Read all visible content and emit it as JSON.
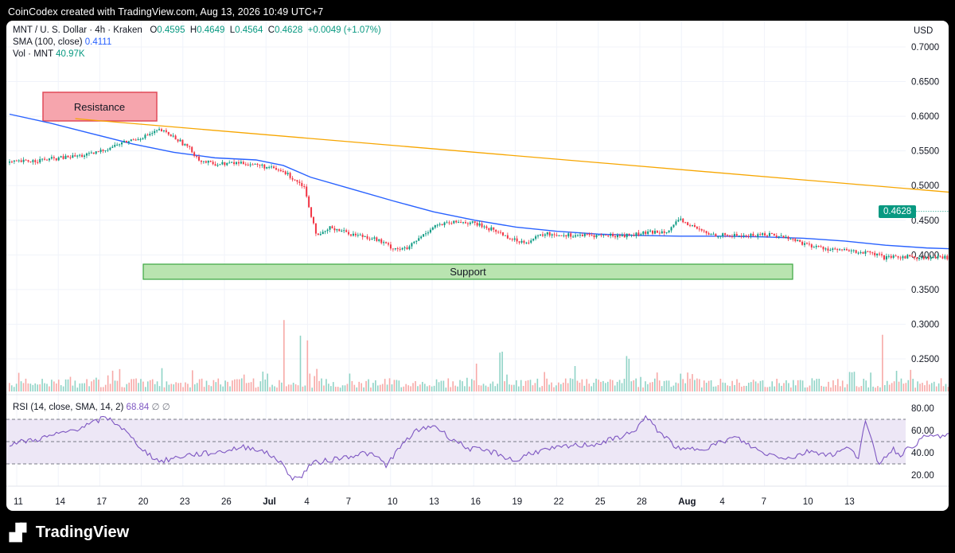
{
  "header": {
    "text": "CoinCodex created with TradingView.com, Aug 13, 2026 10:49 UTC+7"
  },
  "legend": {
    "symbol": "MNT / U. S. Dollar · 4h · Kraken",
    "open_label": "O",
    "open": "0.4595",
    "high_label": "H",
    "high": "0.4649",
    "low_label": "L",
    "low": "0.4564",
    "close_label": "C",
    "close": "0.4628",
    "change": "+0.0049 (+1.07%)",
    "sma_label": "SMA (100, close)",
    "sma_value": "0.4111",
    "vol_label": "Vol · MNT",
    "vol_value": "40.97K"
  },
  "rsi_legend": {
    "label": "RSI (14, close, SMA, 14, 2)",
    "value": "68.84",
    "na1": "∅",
    "na2": "∅"
  },
  "currency": "USD",
  "last_price": "0.4628",
  "annotations": {
    "resistance": "Resistance",
    "support": "Support"
  },
  "footer": {
    "brand": "TradingView"
  },
  "colors": {
    "up": "#089981",
    "down": "#f23645",
    "sma": "#2962ff",
    "trend": "#f7a600",
    "rsi": "#7e57c2",
    "resistance_fill": "#f6a5ad",
    "support_fill": "#b9e4b0"
  },
  "chart_data": {
    "type": "candlestick",
    "title": "MNT / U. S. Dollar · 4h · Kraken",
    "y_axis": {
      "ticks": [
        "0.7000",
        "0.6500",
        "0.6000",
        "0.5500",
        "0.5000",
        "0.4500",
        "0.4000",
        "0.3500",
        "0.3000",
        "0.2500"
      ],
      "min": 0.21,
      "max": 0.72,
      "unit": "USD"
    },
    "x_axis": {
      "ticks": [
        "11",
        "14",
        "17",
        "20",
        "23",
        "26",
        "Jul",
        "4",
        "7",
        "10",
        "13",
        "16",
        "19",
        "22",
        "25",
        "28",
        "Aug",
        "4",
        "7",
        "10",
        "13"
      ]
    },
    "price_path": [
      [
        0,
        0.533
      ],
      [
        3,
        0.538
      ],
      [
        6,
        0.545
      ],
      [
        8,
        0.56
      ],
      [
        10,
        0.572
      ],
      [
        11,
        0.58
      ],
      [
        12,
        0.57
      ],
      [
        13,
        0.556
      ],
      [
        14,
        0.535
      ],
      [
        15,
        0.531
      ],
      [
        17,
        0.533
      ],
      [
        18.5,
        0.528
      ],
      [
        20,
        0.52
      ],
      [
        21.5,
        0.5
      ],
      [
        22,
        0.46
      ],
      [
        22.5,
        0.425
      ],
      [
        23.5,
        0.44
      ],
      [
        25,
        0.43
      ],
      [
        26.5,
        0.425
      ],
      [
        28,
        0.41
      ],
      [
        29,
        0.408
      ],
      [
        30,
        0.425
      ],
      [
        31,
        0.442
      ],
      [
        33,
        0.448
      ],
      [
        34,
        0.445
      ],
      [
        35.5,
        0.435
      ],
      [
        37,
        0.42
      ],
      [
        38,
        0.42
      ],
      [
        39,
        0.43
      ],
      [
        42,
        0.428
      ],
      [
        45,
        0.428
      ],
      [
        48,
        0.435
      ],
      [
        49,
        0.45
      ],
      [
        50,
        0.44
      ],
      [
        51,
        0.43
      ],
      [
        52.5,
        0.428
      ],
      [
        54,
        0.428
      ],
      [
        55.5,
        0.43
      ],
      [
        57,
        0.424
      ],
      [
        58.5,
        0.413
      ],
      [
        60,
        0.408
      ],
      [
        61.5,
        0.405
      ],
      [
        63,
        0.402
      ],
      [
        64,
        0.395
      ],
      [
        65.5,
        0.398
      ],
      [
        67,
        0.395
      ],
      [
        69,
        0.397
      ],
      [
        71,
        0.4
      ],
      [
        72.5,
        0.41
      ],
      [
        74,
        0.418
      ],
      [
        75.5,
        0.428
      ],
      [
        77,
        0.435
      ],
      [
        78,
        0.437
      ],
      [
        78.5,
        0.442
      ],
      [
        79.5,
        0.445
      ],
      [
        80.5,
        0.435
      ],
      [
        81,
        0.432
      ],
      [
        81.4,
        0.447
      ],
      [
        82,
        0.4628
      ]
    ],
    "sma_100": [
      [
        0,
        0.603
      ],
      [
        3,
        0.59
      ],
      [
        6,
        0.575
      ],
      [
        9,
        0.56
      ],
      [
        12,
        0.548
      ],
      [
        15,
        0.54
      ],
      [
        18,
        0.537
      ],
      [
        20,
        0.529
      ],
      [
        22,
        0.512
      ],
      [
        25,
        0.495
      ],
      [
        28,
        0.478
      ],
      [
        31,
        0.462
      ],
      [
        34,
        0.45
      ],
      [
        37,
        0.44
      ],
      [
        40,
        0.434
      ],
      [
        43,
        0.43
      ],
      [
        46,
        0.428
      ],
      [
        49,
        0.427
      ],
      [
        52,
        0.427
      ],
      [
        55,
        0.426
      ],
      [
        58,
        0.424
      ],
      [
        61,
        0.42
      ],
      [
        64,
        0.414
      ],
      [
        67,
        0.41
      ],
      [
        70,
        0.408
      ],
      [
        73,
        0.405
      ],
      [
        76,
        0.403
      ],
      [
        79,
        0.405
      ],
      [
        82,
        0.4111
      ]
    ],
    "trendline": [
      [
        4.8,
        0.5965
      ],
      [
        83.7,
        0.4655
      ]
    ],
    "volume_peaks": [
      [
        20.1,
        0.8
      ],
      [
        21.3,
        0.62
      ],
      [
        21.8,
        0.55
      ],
      [
        34.1,
        0.32
      ],
      [
        35.9,
        0.42
      ],
      [
        45.2,
        0.38
      ],
      [
        47.3,
        0.22
      ],
      [
        61.5,
        0.22
      ],
      [
        63.8,
        0.62
      ],
      [
        71.4,
        0.7
      ],
      [
        76.3,
        0.2
      ],
      [
        79.3,
        0.58
      ],
      [
        80.0,
        0.72
      ],
      [
        80.6,
        0.52
      ],
      [
        81.6,
        0.98
      ]
    ],
    "rsi_path": [
      [
        0,
        48
      ],
      [
        2,
        52
      ],
      [
        4,
        58
      ],
      [
        6,
        66
      ],
      [
        7,
        72
      ],
      [
        8,
        65
      ],
      [
        9,
        52
      ],
      [
        10,
        40
      ],
      [
        11,
        32
      ],
      [
        13,
        38
      ],
      [
        15,
        40
      ],
      [
        17,
        45
      ],
      [
        18,
        44
      ],
      [
        19.5,
        35
      ],
      [
        20,
        28
      ],
      [
        20.6,
        18
      ],
      [
        21.2,
        17
      ],
      [
        22,
        30
      ],
      [
        24,
        35
      ],
      [
        26,
        40
      ],
      [
        27,
        35
      ],
      [
        27.5,
        28
      ],
      [
        28,
        37
      ],
      [
        29.5,
        58
      ],
      [
        31,
        65
      ],
      [
        32,
        55
      ],
      [
        33.5,
        44
      ],
      [
        35.5,
        40
      ],
      [
        37,
        32
      ],
      [
        38,
        40
      ],
      [
        41,
        46
      ],
      [
        43,
        48
      ],
      [
        45.5,
        58
      ],
      [
        46.5,
        72
      ],
      [
        47.2,
        62
      ],
      [
        49,
        42
      ],
      [
        51,
        45
      ],
      [
        53,
        54
      ],
      [
        55,
        40
      ],
      [
        57,
        35
      ],
      [
        58.5,
        42
      ],
      [
        60,
        38
      ],
      [
        61.5,
        45
      ],
      [
        62,
        35
      ],
      [
        62.5,
        68
      ],
      [
        63.5,
        30
      ],
      [
        64.5,
        44
      ],
      [
        65,
        38
      ],
      [
        67,
        55
      ],
      [
        69,
        55
      ],
      [
        71,
        50
      ],
      [
        72,
        62
      ],
      [
        73.5,
        65
      ],
      [
        75,
        72
      ],
      [
        76,
        84
      ],
      [
        77,
        75
      ],
      [
        78,
        64
      ],
      [
        79.3,
        84
      ],
      [
        80.2,
        62
      ],
      [
        81,
        52
      ],
      [
        82,
        68.84
      ]
    ],
    "rsi_levels": {
      "upper": 70,
      "middle": 50,
      "lower": 30
    },
    "rsi_ticks": [
      "80.00",
      "60.00",
      "40.00",
      "20.00"
    ]
  }
}
